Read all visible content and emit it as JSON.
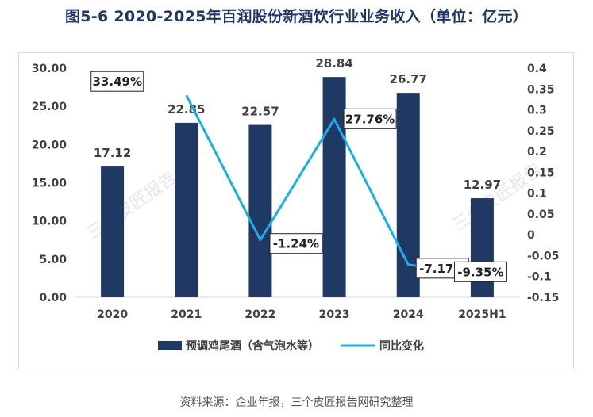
{
  "title": "图5-6 2020-2025年百润股份新酒饮行业业务收入（单位：亿元）",
  "source": "资料来源：企业年报，三个皮匠报告网研究整理",
  "watermark": "三个皮匠报告",
  "colors": {
    "bar": "#203864",
    "line": "#1aaee6",
    "title": "#1f3764",
    "text": "#404040",
    "grid": "#d9d9d9"
  },
  "chart_data": {
    "type": "bar+line",
    "categories": [
      "2020",
      "2021",
      "2022",
      "2023",
      "2024",
      "2025H1"
    ],
    "series": [
      {
        "name": "预调鸡尾酒（含气泡水等）",
        "type": "bar",
        "axis": "left",
        "values": [
          17.12,
          22.85,
          22.57,
          28.84,
          26.77,
          12.97
        ],
        "labels": [
          "17.12",
          "22.85",
          "22.57",
          "28.84",
          "26.77",
          "12.97"
        ]
      },
      {
        "name": "同比变化",
        "type": "line",
        "axis": "right",
        "values": [
          null,
          0.3349,
          -0.0124,
          0.2776,
          -0.0717,
          -0.0935
        ],
        "labels": [
          "",
          "33.49%",
          "-1.24%",
          "27.76%",
          "-7.17%",
          "-9.35%"
        ]
      }
    ],
    "left_axis": {
      "ylim": [
        0,
        30
      ],
      "ticks": [
        "0.00",
        "5.00",
        "10.00",
        "15.00",
        "20.00",
        "25.00",
        "30.00"
      ]
    },
    "right_axis": {
      "ylim": [
        -0.15,
        0.4
      ],
      "ticks": [
        "-0.15",
        "-0.1",
        "-0.05",
        "0",
        "0.05",
        "0.1",
        "0.15",
        "0.2",
        "0.25",
        "0.3",
        "0.35",
        "0.4"
      ]
    },
    "legend": {
      "position": "bottom"
    }
  }
}
